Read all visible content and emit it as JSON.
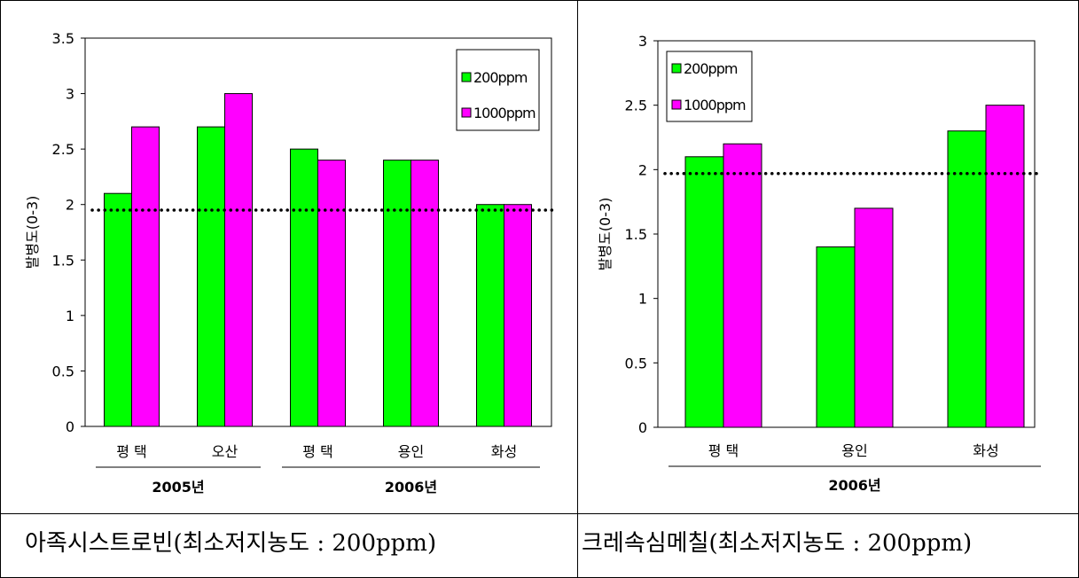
{
  "captions": {
    "left": "아족시스트로빈(최소저지농도 : 200ppm)",
    "right": "크레속심메칠(최소저지농도 : 200ppm)"
  },
  "colors": {
    "s200": "#00ff00",
    "s1000": "#ff00ff"
  },
  "chart_data": [
    {
      "type": "bar",
      "ylabel": "발병도(0-3)",
      "ylim": [
        0,
        3.5
      ],
      "yticks": [
        "0",
        "0.5",
        "1",
        "1.5",
        "2",
        "2.5",
        "3",
        "3.5"
      ],
      "categories": [
        "평 택",
        "오산",
        "평 택",
        "용인",
        "화성"
      ],
      "groups": [
        {
          "label": "2005년",
          "from": 0,
          "to": 1
        },
        {
          "label": "2006년",
          "from": 2,
          "to": 4
        }
      ],
      "series": [
        {
          "name": "200ppm",
          "values": [
            2.1,
            2.7,
            2.5,
            2.4,
            2.0
          ]
        },
        {
          "name": "1000ppm",
          "values": [
            2.7,
            3.0,
            2.4,
            2.4,
            2.0
          ]
        }
      ],
      "reference_line": 1.95,
      "legend": "top-right",
      "grid": false
    },
    {
      "type": "bar",
      "ylabel": "발병도(0-3)",
      "ylim": [
        0,
        3
      ],
      "yticks": [
        "0",
        "0.5",
        "1",
        "1.5",
        "2",
        "2.5",
        "3"
      ],
      "categories": [
        "평 택",
        "용인",
        "화성"
      ],
      "groups": [
        {
          "label": "2006년",
          "from": 0,
          "to": 2
        }
      ],
      "series": [
        {
          "name": "200ppm",
          "values": [
            2.1,
            1.4,
            2.3
          ]
        },
        {
          "name": "1000ppm",
          "values": [
            2.2,
            1.7,
            2.5
          ]
        }
      ],
      "reference_line": 1.97,
      "legend": "top-left",
      "grid": false
    }
  ]
}
